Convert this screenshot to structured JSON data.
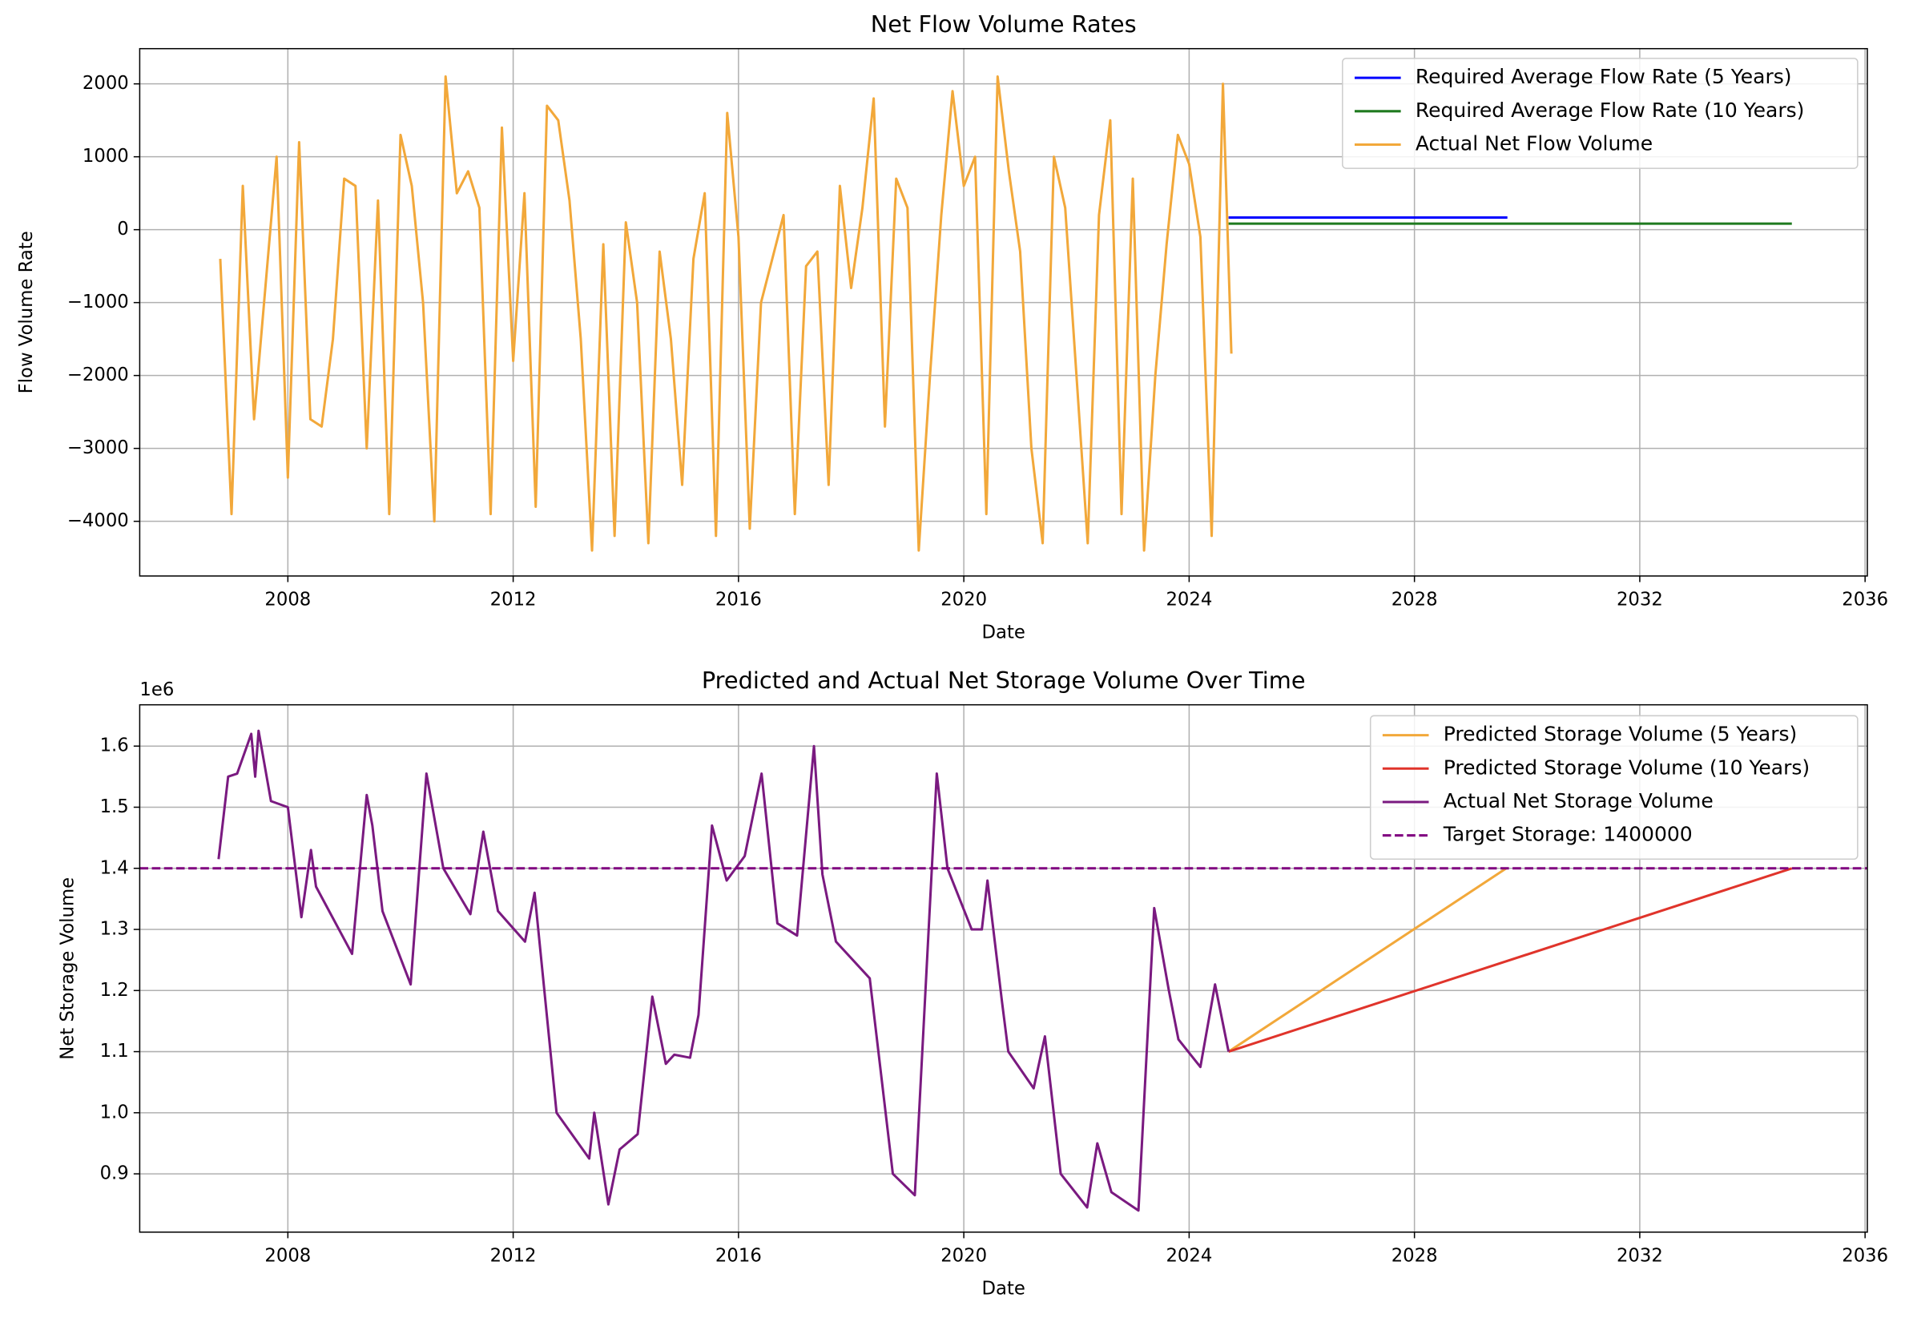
{
  "chart_data": [
    {
      "type": "line",
      "title": "Net Flow Volume Rates",
      "x_label": "Date",
      "y_label": "Flow Volume Rate",
      "xlim": [
        2005.37,
        2036.04
      ],
      "xticks": [
        2008,
        2012,
        2016,
        2020,
        2024,
        2028,
        2032,
        2036
      ],
      "ylim": [
        -4750,
        2483
      ],
      "yticks": [
        {
          "value": -4000,
          "label": "−4000"
        },
        {
          "value": -3000,
          "label": "−3000"
        },
        {
          "value": -2000,
          "label": "−2000"
        },
        {
          "value": -1000,
          "label": "−1000"
        },
        0,
        1000,
        2000
      ],
      "grid": true,
      "legend": "upper right",
      "series": [
        {
          "name": "Required Average Flow Rate (5 Years)",
          "color": "#0000ff",
          "x": [
            2024.7,
            2029.65
          ],
          "values": [
            167,
            167
          ]
        },
        {
          "name": "Required Average Flow Rate (10 Years)",
          "color": "#1f7a1f",
          "x": [
            2024.7,
            2034.7
          ],
          "values": [
            83,
            83
          ]
        },
        {
          "name": "Actual Net Flow Volume",
          "color": "#f2a83a",
          "x": [
            2006.8,
            2007.0,
            2007.2,
            2007.4,
            2007.6,
            2007.8,
            2008.0,
            2008.2,
            2008.4,
            2008.6,
            2008.8,
            2009.0,
            2009.2,
            2009.4,
            2009.6,
            2009.8,
            2010.0,
            2010.2,
            2010.4,
            2010.6,
            2010.8,
            2011.0,
            2011.2,
            2011.4,
            2011.6,
            2011.8,
            2012.0,
            2012.2,
            2012.4,
            2012.6,
            2012.8,
            2013.0,
            2013.2,
            2013.4,
            2013.6,
            2013.8,
            2014.0,
            2014.2,
            2014.4,
            2014.6,
            2014.8,
            2015.0,
            2015.2,
            2015.4,
            2015.6,
            2015.8,
            2016.0,
            2016.2,
            2016.4,
            2016.6,
            2016.8,
            2017.0,
            2017.2,
            2017.4,
            2017.6,
            2017.8,
            2018.0,
            2018.2,
            2018.4,
            2018.6,
            2018.8,
            2019.0,
            2019.2,
            2019.4,
            2019.6,
            2019.8,
            2020.0,
            2020.2,
            2020.4,
            2020.6,
            2020.8,
            2021.0,
            2021.2,
            2021.4,
            2021.6,
            2021.8,
            2022.0,
            2022.2,
            2022.4,
            2022.6,
            2022.8,
            2023.0,
            2023.2,
            2023.4,
            2023.6,
            2023.8,
            2024.0,
            2024.2,
            2024.4,
            2024.6,
            2024.75
          ],
          "values": [
            -400,
            -3900,
            600,
            -2600,
            -800,
            1000,
            -3400,
            1200,
            -2600,
            -2700,
            -1500,
            700,
            600,
            -3000,
            400,
            -3900,
            1300,
            600,
            -1000,
            -4000,
            2100,
            500,
            800,
            300,
            -3900,
            1400,
            -1800,
            500,
            -3800,
            1700,
            1500,
            400,
            -1500,
            -4400,
            -200,
            -4200,
            100,
            -1000,
            -4300,
            -300,
            -1500,
            -3500,
            -400,
            500,
            -4200,
            1600,
            -100,
            -4100,
            -1000,
            -400,
            200,
            -3900,
            -500,
            -300,
            -3500,
            600,
            -800,
            300,
            1800,
            -2700,
            700,
            300,
            -4400,
            -2000,
            200,
            1900,
            600,
            1000,
            -3900,
            2100,
            800,
            -300,
            -3000,
            -4300,
            1000,
            300,
            -2000,
            -4300,
            200,
            1500,
            -3900,
            700,
            -4400,
            -2000,
            -200,
            1300,
            900,
            -100,
            -4200,
            2000,
            -1700
          ]
        }
      ]
    },
    {
      "type": "line",
      "title": "Predicted and Actual Net Storage Volume Over Time",
      "x_label": "Date",
      "y_label": "Net Storage Volume",
      "y_offset_label": "1e6",
      "xlim": [
        2005.37,
        2036.04
      ],
      "xticks": [
        2008,
        2012,
        2016,
        2020,
        2024,
        2028,
        2032,
        2036
      ],
      "ylim": [
        804600,
        1667600
      ],
      "yticks": [
        {
          "value": 900000,
          "label": "0.9"
        },
        {
          "value": 1000000,
          "label": "1.0"
        },
        {
          "value": 1100000,
          "label": "1.1"
        },
        {
          "value": 1200000,
          "label": "1.2"
        },
        {
          "value": 1300000,
          "label": "1.3"
        },
        {
          "value": 1400000,
          "label": "1.4"
        },
        {
          "value": 1500000,
          "label": "1.5"
        },
        {
          "value": 1600000,
          "label": "1.6"
        }
      ],
      "grid": true,
      "legend": "upper right",
      "series": [
        {
          "name": "Predicted Storage Volume (5 Years)",
          "color": "#f2a83a",
          "x": [
            2024.7,
            2029.63
          ],
          "values": [
            1100000,
            1400000
          ]
        },
        {
          "name": "Predicted Storage Volume (10 Years)",
          "color": "#e0342b",
          "x": [
            2024.7,
            2034.7
          ],
          "values": [
            1100000,
            1400000
          ]
        },
        {
          "name": "Actual Net Storage Volume",
          "color": "#7a1a80",
          "x": [
            2006.77,
            2006.94,
            2007.1,
            2007.35,
            2007.42,
            2007.48,
            2007.7,
            2008.0,
            2008.24,
            2008.41,
            2008.5,
            2009.14,
            2009.4,
            2009.5,
            2009.68,
            2010.18,
            2010.46,
            2010.76,
            2011.24,
            2011.47,
            2011.73,
            2012.21,
            2012.38,
            2012.77,
            2013.35,
            2013.44,
            2013.69,
            2013.89,
            2014.21,
            2014.47,
            2014.71,
            2014.86,
            2015.14,
            2015.29,
            2015.53,
            2015.79,
            2016.11,
            2016.41,
            2016.69,
            2017.04,
            2017.34,
            2017.49,
            2017.73,
            2018.33,
            2018.74,
            2019.13,
            2019.52,
            2019.71,
            2020.14,
            2020.32,
            2020.42,
            2020.68,
            2020.79,
            2021.24,
            2021.44,
            2021.72,
            2022.19,
            2022.37,
            2022.62,
            2023.1,
            2023.38,
            2023.64,
            2023.81,
            2024.2,
            2024.46,
            2024.7
          ],
          "values": [
            1415000,
            1550000,
            1555000,
            1620000,
            1550000,
            1625000,
            1510000,
            1500000,
            1320000,
            1430000,
            1370000,
            1260000,
            1520000,
            1470000,
            1330000,
            1210000,
            1555000,
            1400000,
            1325000,
            1460000,
            1330000,
            1280000,
            1360000,
            1000000,
            925000,
            1000000,
            850000,
            940000,
            965000,
            1190000,
            1080000,
            1095000,
            1090000,
            1160000,
            1470000,
            1380000,
            1420000,
            1555000,
            1310000,
            1290000,
            1600000,
            1390000,
            1280000,
            1220000,
            900000,
            865000,
            1555000,
            1400000,
            1300000,
            1300000,
            1380000,
            1180000,
            1100000,
            1040000,
            1125000,
            900000,
            845000,
            950000,
            870000,
            840000,
            1335000,
            1200000,
            1120000,
            1075000,
            1210000,
            1100000
          ]
        }
      ],
      "hlines": [
        {
          "name": "Target Storage: 1400000",
          "value": 1400000,
          "color": "#800080",
          "linestyle": "dashed"
        }
      ]
    }
  ]
}
